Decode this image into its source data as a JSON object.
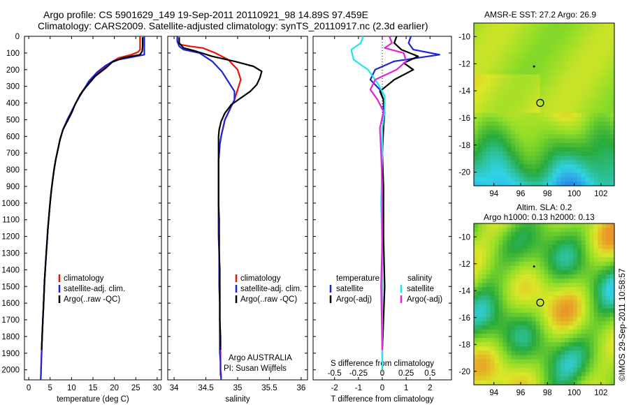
{
  "header": {
    "line1": "Argo profile: CS 5901629_149 19-Sep-2011 20110921_98 14.89S 97.459E",
    "line2": "Climatology: CARS2009. Satellite-adjusted climatology: synTS_20110917.nc (2.3d earlier)"
  },
  "stamp": "©IMOS 29-Sep-2011 10:58:57",
  "colors": {
    "climatology": "#e8120c",
    "satellite": "#1d24d8",
    "argo": "#000000",
    "s_satellite": "#1ee6ee",
    "s_argo": "#e023d4"
  },
  "chart_data": [
    {
      "type": "line",
      "name": "temperature-panel",
      "xlabel": "temperature (deg C)",
      "ylabel": "",
      "xlim": [
        -1,
        31
      ],
      "ylim": [
        2060,
        0
      ],
      "xticks": [
        "0",
        "5",
        "10",
        "15",
        "20",
        "25",
        "30"
      ],
      "xtick_values": [
        0,
        5,
        10,
        15,
        20,
        25,
        30
      ],
      "yticks": [
        "0",
        "100",
        "200",
        "300",
        "400",
        "500",
        "600",
        "700",
        "800",
        "900",
        "1000",
        "1100",
        "1200",
        "1300",
        "1400",
        "1500",
        "1600",
        "1700",
        "1800",
        "1900",
        "2000"
      ],
      "legend": {
        "entries": [
          "climatology",
          "satellite-adj. clim.",
          "Argo(..raw -QC)"
        ],
        "placement": "lower-left-center"
      },
      "series": [
        {
          "name": "climatology",
          "color": "#e8120c",
          "x": [
            26.0,
            26.0,
            26.0,
            25.5,
            24,
            21,
            19,
            17,
            14.5,
            12.5,
            11,
            10,
            9,
            8,
            7.3,
            6.8,
            6.3,
            5.9,
            5.6,
            5.3,
            5.05,
            4.85,
            4.65,
            4.45,
            4.3,
            4.15,
            4.0,
            3.85,
            3.7,
            3.6,
            3.5,
            3.4,
            3.3,
            3.2,
            3.1,
            3.0,
            2.9,
            2.8
          ],
          "y": [
            0,
            50,
            80,
            95,
            110,
            130,
            160,
            200,
            260,
            330,
            400,
            450,
            500,
            560,
            620,
            680,
            740,
            800,
            860,
            920,
            980,
            1040,
            1100,
            1160,
            1220,
            1280,
            1340,
            1400,
            1460,
            1520,
            1580,
            1640,
            1700,
            1760,
            1820,
            1900,
            1980,
            2060
          ]
        },
        {
          "name": "satellite-adj. clim.",
          "color": "#1d24d8",
          "x": [
            27.0,
            27.0,
            27.0,
            27.0,
            24,
            20,
            18,
            16,
            14,
            12.5,
            11,
            10,
            9,
            8,
            7.3,
            6.8,
            6.3,
            5.9,
            5.6,
            5.3,
            5.05,
            4.85,
            4.65,
            4.45,
            4.3,
            4.15,
            4.0,
            3.85,
            3.7,
            3.6,
            3.5,
            3.4,
            3.3,
            3.2,
            3.1,
            3.0,
            2.9,
            2.8
          ],
          "y": [
            0,
            60,
            90,
            110,
            125,
            145,
            175,
            215,
            270,
            335,
            400,
            450,
            500,
            560,
            620,
            680,
            740,
            800,
            860,
            920,
            980,
            1040,
            1100,
            1160,
            1220,
            1280,
            1340,
            1400,
            1460,
            1520,
            1580,
            1640,
            1700,
            1760,
            1820,
            1900,
            1980,
            2060
          ]
        },
        {
          "name": "Argo(..raw -QC)",
          "color": "#000000",
          "x": [
            26.6,
            26.6,
            26.5,
            26,
            22,
            19.5,
            18,
            15.5,
            13.5,
            12,
            10.8,
            10,
            9,
            8,
            7.3,
            6.8,
            6.3,
            5.9,
            5.6,
            5.3,
            5.05,
            4.85,
            4.65,
            4.45,
            4.3,
            4.15,
            4.0,
            3.85,
            3.7,
            3.6,
            3.5,
            3.4,
            3.3,
            3.2,
            3.1,
            3.0
          ],
          "y": [
            5,
            60,
            90,
            110,
            130,
            155,
            190,
            240,
            300,
            350,
            410,
            460,
            510,
            560,
            620,
            680,
            740,
            800,
            860,
            920,
            980,
            1040,
            1100,
            1160,
            1220,
            1280,
            1340,
            1400,
            1460,
            1520,
            1580,
            1640,
            1700,
            1760,
            1820,
            1880
          ]
        }
      ]
    },
    {
      "type": "line",
      "name": "salinity-panel",
      "xlabel": "salinity",
      "xlim": [
        33.9,
        36.1
      ],
      "ylim": [
        2060,
        0
      ],
      "xticks": [
        "34",
        "34.5",
        "35",
        "35.5",
        "36"
      ],
      "xtick_values": [
        34,
        34.5,
        35,
        35.5,
        36
      ],
      "legend": {
        "entries": [
          "climatology",
          "satellite-adj. clim.",
          "Argo(..raw -QC)"
        ],
        "placement": "lower-right"
      },
      "annotations": [
        "Argo AUSTRALIA",
        "PI: Susan Wijffels"
      ],
      "series": [
        {
          "name": "climatology",
          "color": "#e8120c",
          "x": [
            34.05,
            34.05,
            34.1,
            34.25,
            34.45,
            34.65,
            34.85,
            35.0,
            35.05,
            35.0,
            34.95,
            34.9,
            34.85,
            34.8,
            34.77,
            34.74,
            34.72,
            34.71,
            34.7,
            34.7,
            34.7,
            34.7,
            34.7,
            34.71,
            34.71,
            34.71,
            34.72,
            34.72,
            34.72,
            34.72,
            34.73,
            34.73,
            34.73,
            34.74,
            34.74
          ],
          "y": [
            0,
            30,
            50,
            60,
            70,
            100,
            140,
            200,
            260,
            320,
            380,
            420,
            460,
            500,
            550,
            600,
            650,
            700,
            750,
            800,
            900,
            1000,
            1100,
            1200,
            1300,
            1400,
            1500,
            1600,
            1700,
            1800,
            1900,
            1950,
            2000,
            2030,
            2060
          ]
        },
        {
          "name": "satellite-adj. clim.",
          "color": "#1d24d8",
          "x": [
            34.05,
            34.05,
            34.08,
            34.15,
            34.4,
            34.6,
            34.75,
            34.85,
            34.95,
            34.95,
            34.9,
            34.85,
            34.8,
            34.77,
            34.74,
            34.72,
            34.71,
            34.7,
            34.7,
            34.7,
            34.7,
            34.7,
            34.7,
            34.71,
            34.71,
            34.71,
            34.72,
            34.72,
            34.72,
            34.72,
            34.73,
            34.73,
            34.73,
            34.74,
            34.74
          ],
          "y": [
            0,
            30,
            60,
            80,
            100,
            150,
            210,
            270,
            330,
            380,
            420,
            460,
            500,
            550,
            600,
            650,
            700,
            750,
            800,
            900,
            1000,
            1100,
            1200,
            1300,
            1400,
            1500,
            1600,
            1700,
            1800,
            1900,
            1950,
            2000,
            2030,
            2045,
            2060
          ]
        },
        {
          "name": "Argo(..raw -QC)",
          "color": "#000000",
          "x": [
            34.08,
            34.08,
            34.15,
            34.35,
            34.6,
            34.95,
            35.25,
            35.38,
            35.35,
            35.3,
            35.2,
            35.05,
            34.9,
            34.8,
            34.74,
            34.71,
            34.7,
            34.7,
            34.7,
            34.7,
            34.7,
            34.7,
            34.71,
            34.71,
            34.71,
            34.72,
            34.72,
            34.72,
            34.72,
            34.73,
            34.73,
            34.73
          ],
          "y": [
            5,
            40,
            70,
            90,
            120,
            150,
            180,
            210,
            250,
            290,
            330,
            370,
            410,
            460,
            510,
            560,
            600,
            650,
            700,
            800,
            900,
            1000,
            1100,
            1200,
            1300,
            1400,
            1500,
            1600,
            1700,
            1800,
            1850,
            1880
          ]
        }
      ]
    },
    {
      "type": "line",
      "name": "difference-panel",
      "xlabel": "T difference from climatology",
      "xlabel_top": "S difference from climatology",
      "xlim": [
        -2.9,
        2.9
      ],
      "ylim": [
        2060,
        0
      ],
      "xticks": [
        "-2",
        "-1",
        "0",
        "1",
        "2"
      ],
      "xtick_values": [
        -2,
        -1,
        0,
        1,
        2
      ],
      "s_xticks": [
        "-0.5",
        "-0.25",
        "0",
        "0.25",
        "0.5"
      ],
      "legend": {
        "entries": [
          "temperature",
          "satellite",
          "Argo(-adj)",
          "salinity",
          "satellite",
          "Argo(-adj)"
        ],
        "placement": "lower-center"
      },
      "series": [
        {
          "name": "T satellite",
          "color": "#1d24d8",
          "x": [
            1.2,
            1.1,
            1.3,
            2.4,
            0.5,
            -0.3,
            -0.5,
            -0.1,
            0.05,
            0.05,
            0.0,
            0.0,
            0.0,
            0.0,
            0.0,
            0.0,
            0.0,
            0.0,
            0.0,
            0.0,
            0.0
          ],
          "y": [
            0,
            40,
            80,
            110,
            150,
            200,
            260,
            320,
            380,
            500,
            600,
            700,
            800,
            900,
            1000,
            1200,
            1400,
            1600,
            1800,
            1950,
            2000
          ]
        },
        {
          "name": "T Argo(-adj)",
          "color": "#000000",
          "x": [
            0.6,
            0.5,
            0.8,
            1.5,
            0.9,
            1.3,
            0.5,
            -0.1,
            0.05,
            0.1,
            0.05,
            0.0,
            0.05,
            0.05,
            0.1,
            0.05,
            0.0
          ],
          "y": [
            0,
            40,
            80,
            120,
            160,
            200,
            260,
            330,
            380,
            450,
            550,
            700,
            900,
            1200,
            1500,
            1700,
            1880
          ]
        },
        {
          "name": "S satellite",
          "color": "#1ee6ee",
          "x": [
            -0.8,
            -0.9,
            -1.3,
            -1.2,
            -0.6,
            -0.2,
            0.1,
            0.1,
            0.0,
            0.0,
            -0.05,
            0.0,
            0.0,
            0.0,
            0.0
          ],
          "y": [
            0,
            40,
            80,
            140,
            200,
            280,
            360,
            450,
            550,
            700,
            1000,
            1300,
            1600,
            1900,
            2000
          ]
        },
        {
          "name": "S Argo(-adj)",
          "color": "#e023d4",
          "x": [
            0.3,
            0.4,
            0.1,
            0.9,
            1.0,
            0.6,
            -0.3,
            -0.5,
            -0.2,
            0.05,
            -0.1,
            -0.05,
            0.0,
            0.0,
            -0.05,
            0.0
          ],
          "y": [
            0,
            40,
            70,
            100,
            150,
            200,
            260,
            320,
            380,
            450,
            550,
            700,
            900,
            1200,
            1500,
            1880
          ]
        }
      ]
    },
    {
      "type": "heatmap",
      "name": "sst-map",
      "title": "AMSR-E SST: 27.2 Argo: 26.9",
      "xticks": [
        "94",
        "96",
        "98",
        "100",
        "102"
      ],
      "yticks": [
        "-10",
        "-12",
        "-14",
        "-16",
        "-18",
        "-20"
      ],
      "xlim": [
        92.5,
        103
      ],
      "ylim": [
        -21,
        -9
      ]
    },
    {
      "type": "heatmap",
      "name": "sla-map",
      "title": "Altim. SLA: 0.2",
      "subtitle": "Argo h1000: 0.13 h2000: 0.13",
      "xticks": [
        "94",
        "96",
        "98",
        "100",
        "102"
      ],
      "yticks": [
        "-10",
        "-12",
        "-14",
        "-16",
        "-18",
        "-20"
      ],
      "xlim": [
        92.5,
        103
      ],
      "ylim": [
        -21,
        -9
      ]
    }
  ]
}
